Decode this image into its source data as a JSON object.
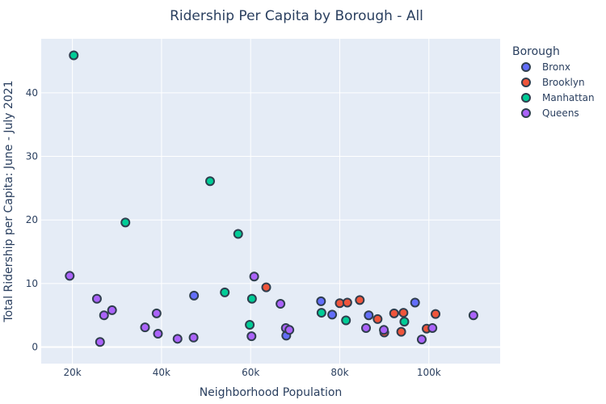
{
  "chart_data": {
    "type": "scatter",
    "title": "Ridership Per Capita by Borough - All",
    "xlabel": "Neighborhood Population",
    "ylabel": "Total Ridership per Capita: June - July 2021",
    "xlim": [
      13000,
      116000
    ],
    "ylim": [
      -2.6,
      48.5
    ],
    "x_ticks": [
      20000,
      40000,
      60000,
      80000,
      100000
    ],
    "x_tick_labels": [
      "20k",
      "40k",
      "60k",
      "80k",
      "100k"
    ],
    "y_ticks": [
      0,
      10,
      20,
      30,
      40
    ],
    "y_tick_labels": [
      "0",
      "10",
      "20",
      "30",
      "40"
    ],
    "grid": true,
    "legend": {
      "title": "Borough",
      "placement": "right"
    },
    "series": [
      {
        "name": "Bronx",
        "color": "#636efa",
        "points": [
          [
            47300,
            8.1
          ],
          [
            75800,
            7.2
          ],
          [
            78300,
            5.1
          ],
          [
            86500,
            5.0
          ],
          [
            96900,
            7.0
          ],
          [
            68000,
            1.8
          ]
        ]
      },
      {
        "name": "Brooklyn",
        "color": "#ef553b",
        "points": [
          [
            63500,
            9.4
          ],
          [
            80000,
            6.9
          ],
          [
            81700,
            7.0
          ],
          [
            84500,
            7.4
          ],
          [
            88500,
            4.4
          ],
          [
            90000,
            2.3
          ],
          [
            92200,
            5.3
          ],
          [
            93800,
            2.4
          ],
          [
            94300,
            5.4
          ],
          [
            99500,
            2.9
          ],
          [
            101500,
            5.2
          ]
        ]
      },
      {
        "name": "Manhattan",
        "color": "#00cc96",
        "points": [
          [
            20300,
            45.9
          ],
          [
            31900,
            19.6
          ],
          [
            50900,
            26.1
          ],
          [
            57200,
            17.8
          ],
          [
            54200,
            8.6
          ],
          [
            60300,
            7.6
          ],
          [
            59800,
            3.5
          ],
          [
            75900,
            5.4
          ],
          [
            81400,
            4.2
          ],
          [
            94500,
            4.0
          ]
        ]
      },
      {
        "name": "Queens",
        "color": "#ab63fa",
        "points": [
          [
            19400,
            11.2
          ],
          [
            25500,
            7.6
          ],
          [
            26200,
            0.8
          ],
          [
            27100,
            5.0
          ],
          [
            28900,
            5.8
          ],
          [
            36300,
            3.1
          ],
          [
            38900,
            5.3
          ],
          [
            39200,
            2.1
          ],
          [
            43600,
            1.3
          ],
          [
            47200,
            1.5
          ],
          [
            60200,
            1.7
          ],
          [
            60800,
            11.1
          ],
          [
            66700,
            6.8
          ],
          [
            67900,
            3.0
          ],
          [
            68700,
            2.7
          ],
          [
            85900,
            3.0
          ],
          [
            89900,
            2.7
          ],
          [
            98400,
            1.2
          ],
          [
            100800,
            3.0
          ],
          [
            110000,
            5.0
          ]
        ]
      }
    ]
  }
}
